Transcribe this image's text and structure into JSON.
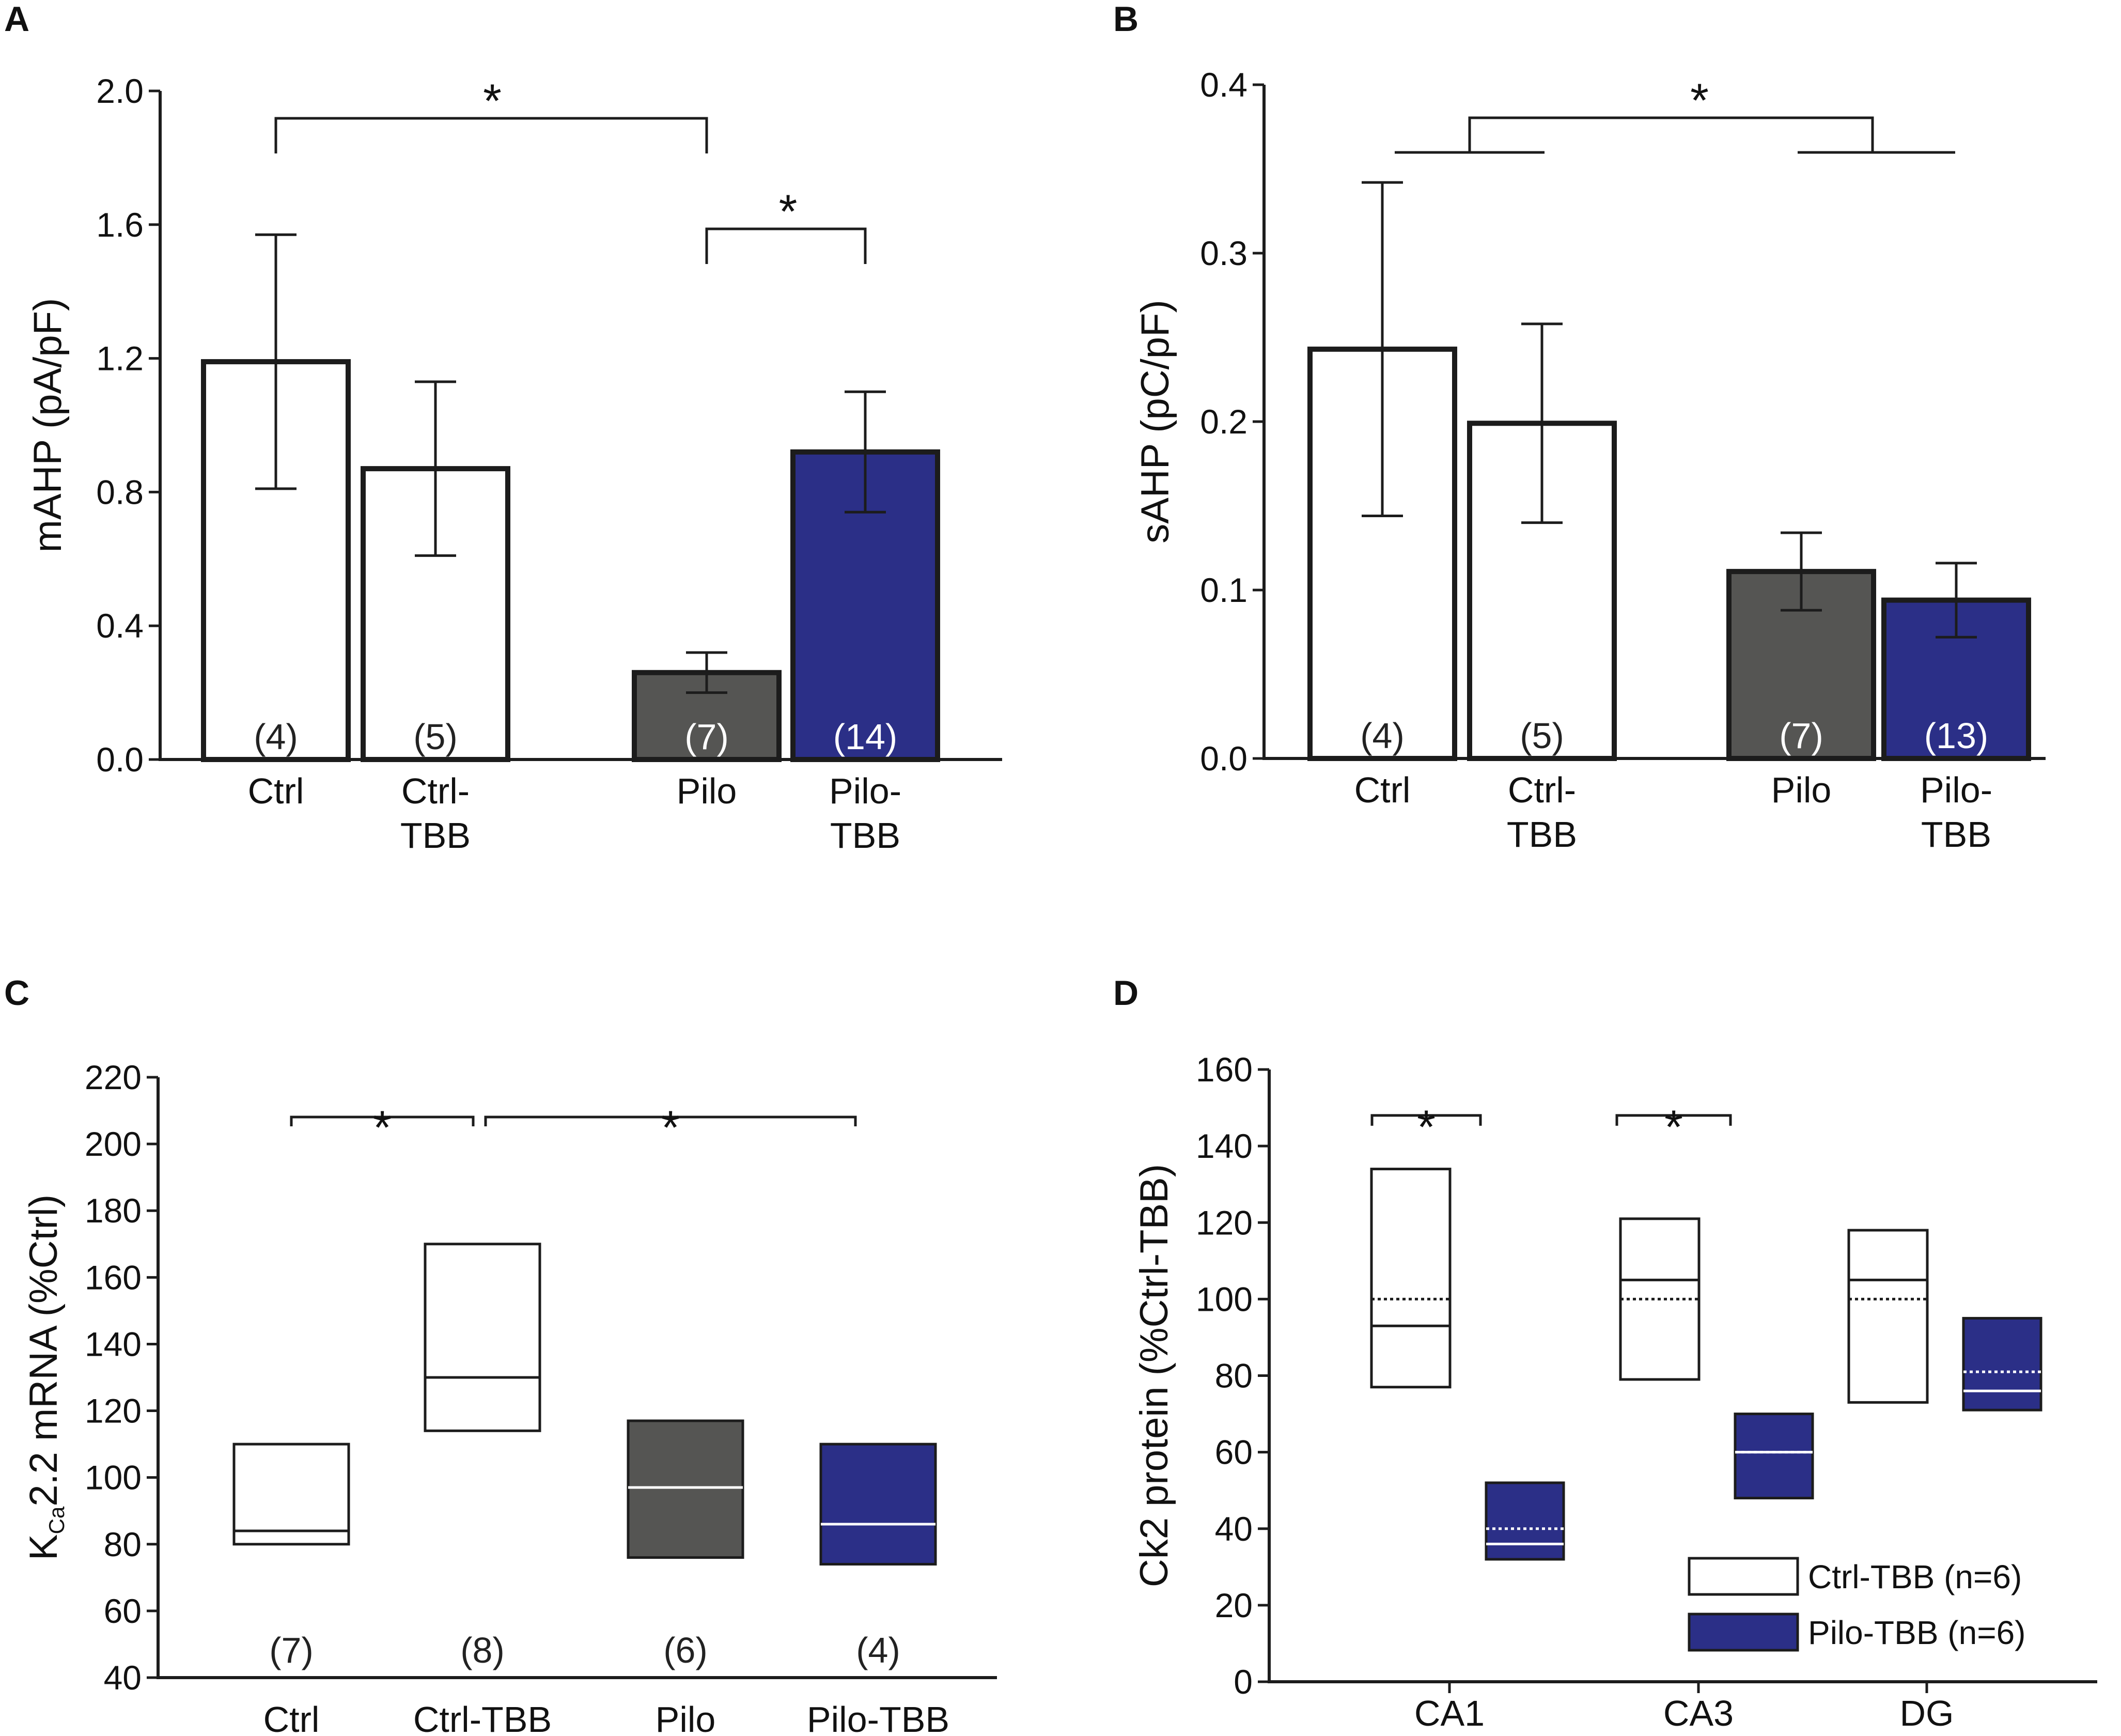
{
  "colors": {
    "white_bar": "#ffffff",
    "pilo_bar": "#555553",
    "pilotbb_bar": "#2b2f87",
    "ink": "#1c1c1c"
  },
  "chart_data": [
    {
      "panel": "A",
      "type": "bar",
      "ylabel": "mAHP (pA/pF)",
      "ylim": [
        0,
        2.0
      ],
      "yticks": [
        "0.0",
        "0.4",
        "0.8",
        "1.2",
        "1.6",
        "2.0"
      ],
      "categories": [
        "Ctrl",
        "Ctrl-\nTBB",
        "Pilo",
        "Pilo-\nTBB"
      ],
      "values": [
        1.19,
        0.87,
        0.26,
        0.92
      ],
      "errors": [
        0.38,
        0.26,
        0.06,
        0.18
      ],
      "n": [
        "(4)",
        "(5)",
        "(7)",
        "(14)"
      ],
      "fills": [
        "white",
        "white",
        "pilo",
        "pilotbb"
      ],
      "significance": [
        {
          "from": 0,
          "to": 2,
          "y": 1.92,
          "label": "*"
        },
        {
          "from": 2,
          "to": 3,
          "y": 1.6,
          "label": "*"
        }
      ]
    },
    {
      "panel": "B",
      "type": "bar",
      "ylabel": "sAHP (pC/pF)",
      "ylim": [
        0,
        0.4
      ],
      "yticks": [
        "0.0",
        "0.1",
        "0.2",
        "0.3",
        "0.4"
      ],
      "categories": [
        "Ctrl",
        "Ctrl-\nTBB",
        "Pilo",
        "Pilo-\nTBB"
      ],
      "values": [
        0.243,
        0.199,
        0.111,
        0.094
      ],
      "errors": [
        0.099,
        0.059,
        0.023,
        0.022
      ],
      "n": [
        "(4)",
        "(5)",
        "(7)",
        "(13)"
      ],
      "fills": [
        "white",
        "white",
        "pilo",
        "pilotbb"
      ],
      "significance": [
        {
          "groups": [
            [
              0,
              1
            ],
            [
              2,
              3
            ]
          ],
          "y_low": 0.36,
          "y_high": 0.38,
          "label": "*"
        }
      ]
    },
    {
      "panel": "C",
      "type": "box",
      "ylabel": "K Ca2.2 mRNA (%Ctrl)",
      "ylabel_main": "K",
      "ylabel_sub": "Ca",
      "ylabel_rest": "2.2 mRNA (%Ctrl)",
      "ylim": [
        40,
        220
      ],
      "yticks": [
        "40",
        "60",
        "80",
        "100",
        "120",
        "140",
        "160",
        "180",
        "200",
        "220"
      ],
      "categories": [
        "Ctrl",
        "Ctrl-TBB",
        "Pilo",
        "Pilo-TBB"
      ],
      "boxes": [
        {
          "low": 80,
          "high": 110,
          "median": 84
        },
        {
          "low": 114,
          "high": 170,
          "median": 130
        },
        {
          "low": 76,
          "high": 117,
          "median": 97
        },
        {
          "low": 74,
          "high": 110,
          "median": 86
        }
      ],
      "n": [
        "(7)",
        "(8)",
        "(6)",
        "(4)"
      ],
      "fills": [
        "white",
        "white",
        "pilo",
        "pilotbb"
      ],
      "significance": [
        {
          "from": 0,
          "to": 1,
          "y": 206,
          "label": "*"
        },
        {
          "from": 1,
          "to": 3,
          "y": 206,
          "label": "*"
        }
      ]
    },
    {
      "panel": "D",
      "type": "box",
      "ylabel": "Ck2 protein (%Ctrl-TBB)",
      "ylim": [
        0,
        160
      ],
      "yticks": [
        "0",
        "20",
        "40",
        "60",
        "80",
        "100",
        "120",
        "140",
        "160"
      ],
      "categories": [
        "CA1",
        "CA3",
        "DG"
      ],
      "series": [
        {
          "name": "Ctrl-TBB (n=6)",
          "fill": "white",
          "boxes": [
            {
              "low": 77,
              "high": 134,
              "median": 93,
              "mean": 100
            },
            {
              "low": 79,
              "high": 121,
              "median": 105,
              "mean": 100
            },
            {
              "low": 73,
              "high": 118,
              "median": 105,
              "mean": 100
            }
          ]
        },
        {
          "name": "Pilo-TBB (n=6)",
          "fill": "pilotbb",
          "boxes": [
            {
              "low": 32,
              "high": 52,
              "median": 36,
              "mean": 40
            },
            {
              "low": 48,
              "high": 70,
              "median": 60,
              "mean": 60
            },
            {
              "low": 71,
              "high": 95,
              "median": 76,
              "mean": 81
            }
          ]
        }
      ],
      "significance": [
        {
          "category": 0,
          "y": 148,
          "label": "*"
        },
        {
          "category": 1,
          "y": 148,
          "label": "*"
        }
      ],
      "legend": [
        "Ctrl-TBB (n=6)",
        "Pilo-TBB (n=6)"
      ]
    }
  ]
}
